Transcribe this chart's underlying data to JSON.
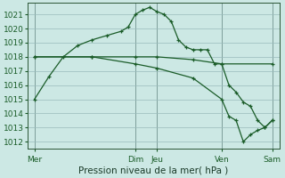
{
  "background_color": "#cce8e4",
  "grid_color": "#99bbbb",
  "line_color": "#1a5c28",
  "xlabel": "Pression niveau de la mer( hPa )",
  "xlabel_fontsize": 7.5,
  "ylim": [
    1011.5,
    1021.8
  ],
  "yticks": [
    1012,
    1013,
    1014,
    1015,
    1016,
    1017,
    1018,
    1019,
    1020,
    1021
  ],
  "ytick_fontsize": 6.5,
  "day_labels": [
    "Mer",
    "Dim",
    "Jeu",
    "Ven",
    "Sam"
  ],
  "day_positions": [
    0,
    14,
    17,
    26,
    33
  ],
  "xlim": [
    -1,
    34
  ],
  "series": [
    {
      "x": [
        0,
        2,
        4,
        6,
        8,
        10,
        12,
        13,
        14,
        15,
        16,
        17,
        18,
        19,
        20,
        21,
        22,
        23,
        24,
        25,
        26,
        27,
        28,
        29,
        30,
        31,
        32,
        33
      ],
      "y": [
        1015.0,
        1016.6,
        1018.0,
        1018.8,
        1019.2,
        1019.5,
        1019.8,
        1020.1,
        1021.0,
        1021.3,
        1021.5,
        1021.2,
        1021.0,
        1020.5,
        1019.2,
        1018.7,
        1018.5,
        1018.5,
        1018.5,
        1017.5,
        1017.5,
        1016.0,
        1015.5,
        1014.8,
        1014.5,
        1013.5,
        1013.0,
        1013.5
      ]
    },
    {
      "x": [
        0,
        8,
        14,
        17,
        22,
        26,
        33
      ],
      "y": [
        1018.0,
        1018.0,
        1018.0,
        1018.0,
        1017.8,
        1017.5,
        1017.5
      ]
    },
    {
      "x": [
        0,
        8,
        14,
        17,
        22,
        26,
        27,
        28,
        29,
        30,
        31,
        32,
        33
      ],
      "y": [
        1018.0,
        1018.0,
        1017.5,
        1017.2,
        1016.5,
        1015.0,
        1013.8,
        1013.5,
        1012.0,
        1012.5,
        1012.8,
        1013.0,
        1013.5
      ]
    }
  ]
}
